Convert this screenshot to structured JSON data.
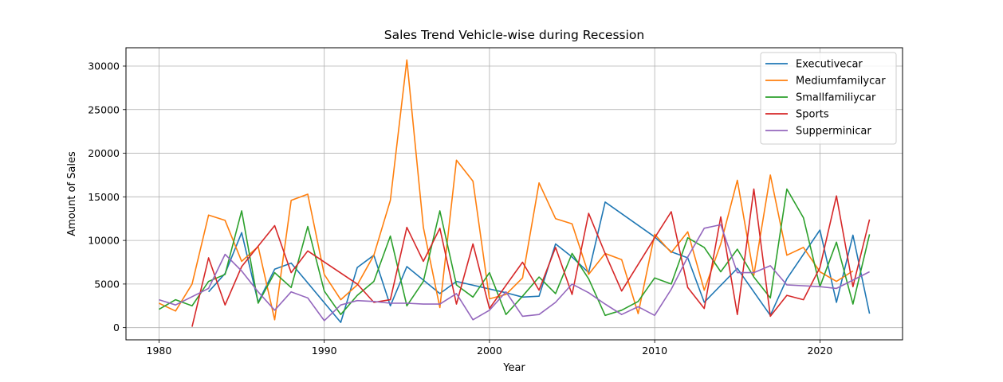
{
  "chart_data": {
    "type": "line",
    "title": "Sales Trend Vehicle-wise during Recession",
    "xlabel": "Year",
    "ylabel": "Amount of Sales",
    "xlim": [
      1978,
      2025
    ],
    "ylim": [
      -1400,
      32100
    ],
    "xticks": [
      1980,
      1990,
      2000,
      2010,
      2020
    ],
    "yticks": [
      0,
      5000,
      10000,
      15000,
      20000,
      25000,
      30000
    ],
    "grid": true,
    "legend_position": "top-right",
    "series": [
      {
        "name": "Executivecar",
        "color": "#1f77b4",
        "points": [
          [
            1983,
            4100
          ],
          [
            1984,
            6200
          ],
          [
            1985,
            10900
          ],
          [
            1986,
            2900
          ],
          [
            1987,
            6700
          ],
          [
            1988,
            7400
          ],
          [
            1991,
            600
          ],
          [
            1992,
            6900
          ],
          [
            1993,
            8300
          ],
          [
            1994,
            2500
          ],
          [
            1995,
            7000
          ],
          [
            1997,
            3900
          ],
          [
            1998,
            5300
          ],
          [
            2001,
            4000
          ],
          [
            2002,
            3500
          ],
          [
            2003,
            3600
          ],
          [
            2004,
            9600
          ],
          [
            2005,
            8100
          ],
          [
            2006,
            6300
          ],
          [
            2007,
            14400
          ],
          [
            2010,
            10400
          ],
          [
            2011,
            8700
          ],
          [
            2012,
            8000
          ],
          [
            2013,
            2900
          ],
          [
            2015,
            6800
          ],
          [
            2017,
            1400
          ],
          [
            2018,
            5600
          ],
          [
            2020,
            11200
          ],
          [
            2021,
            2900
          ],
          [
            2022,
            10600
          ],
          [
            2023,
            1600
          ]
        ]
      },
      {
        "name": "Mediumfamilycar",
        "color": "#ff7f0e",
        "points": [
          [
            1980,
            2800
          ],
          [
            1981,
            1900
          ],
          [
            1982,
            5000
          ],
          [
            1983,
            12900
          ],
          [
            1984,
            12300
          ],
          [
            1985,
            7600
          ],
          [
            1986,
            9300
          ],
          [
            1987,
            900
          ],
          [
            1988,
            14600
          ],
          [
            1989,
            15300
          ],
          [
            1990,
            6100
          ],
          [
            1991,
            3200
          ],
          [
            1992,
            4900
          ],
          [
            1993,
            8300
          ],
          [
            1994,
            14600
          ],
          [
            1995,
            30700
          ],
          [
            1996,
            11500
          ],
          [
            1997,
            2300
          ],
          [
            1998,
            19200
          ],
          [
            1999,
            16800
          ],
          [
            2000,
            3300
          ],
          [
            2001,
            3800
          ],
          [
            2002,
            5700
          ],
          [
            2003,
            16600
          ],
          [
            2004,
            12500
          ],
          [
            2005,
            11900
          ],
          [
            2006,
            6100
          ],
          [
            2007,
            8500
          ],
          [
            2008,
            7800
          ],
          [
            2009,
            1600
          ],
          [
            2010,
            10700
          ],
          [
            2011,
            8600
          ],
          [
            2012,
            11000
          ],
          [
            2013,
            4300
          ],
          [
            2014,
            9600
          ],
          [
            2015,
            16900
          ],
          [
            2016,
            6000
          ],
          [
            2017,
            17500
          ],
          [
            2018,
            8300
          ],
          [
            2019,
            9200
          ],
          [
            2020,
            6400
          ],
          [
            2021,
            5300
          ],
          [
            2022,
            6500
          ]
        ]
      },
      {
        "name": "Smallfamiliycar",
        "color": "#2ca02c",
        "points": [
          [
            1980,
            2100
          ],
          [
            1981,
            3200
          ],
          [
            1982,
            2500
          ],
          [
            1983,
            5300
          ],
          [
            1984,
            6100
          ],
          [
            1985,
            13400
          ],
          [
            1986,
            2800
          ],
          [
            1987,
            6300
          ],
          [
            1988,
            4600
          ],
          [
            1989,
            11600
          ],
          [
            1990,
            4200
          ],
          [
            1991,
            1500
          ],
          [
            1992,
            3700
          ],
          [
            1993,
            5300
          ],
          [
            1994,
            10500
          ],
          [
            1995,
            2500
          ],
          [
            1996,
            5300
          ],
          [
            1997,
            13400
          ],
          [
            1998,
            4900
          ],
          [
            1999,
            3500
          ],
          [
            2000,
            6300
          ],
          [
            2001,
            1500
          ],
          [
            2002,
            3600
          ],
          [
            2003,
            5800
          ],
          [
            2004,
            3900
          ],
          [
            2005,
            8500
          ],
          [
            2006,
            5600
          ],
          [
            2007,
            1400
          ],
          [
            2008,
            2000
          ],
          [
            2009,
            3000
          ],
          [
            2010,
            5700
          ],
          [
            2011,
            5000
          ],
          [
            2012,
            10300
          ],
          [
            2013,
            9200
          ],
          [
            2014,
            6400
          ],
          [
            2015,
            9000
          ],
          [
            2016,
            5800
          ],
          [
            2017,
            3400
          ],
          [
            2018,
            15900
          ],
          [
            2019,
            12600
          ],
          [
            2020,
            4700
          ],
          [
            2021,
            9800
          ],
          [
            2022,
            2700
          ],
          [
            2023,
            10700
          ]
        ]
      },
      {
        "name": "Sports",
        "color": "#d62728",
        "points": [
          [
            1982,
            100
          ],
          [
            1983,
            8000
          ],
          [
            1984,
            2600
          ],
          [
            1985,
            7000
          ],
          [
            1987,
            11700
          ],
          [
            1988,
            6300
          ],
          [
            1989,
            8800
          ],
          [
            1992,
            5000
          ],
          [
            1993,
            2900
          ],
          [
            1994,
            3200
          ],
          [
            1995,
            11500
          ],
          [
            1996,
            7600
          ],
          [
            1997,
            11400
          ],
          [
            1998,
            2700
          ],
          [
            1999,
            9600
          ],
          [
            2000,
            2200
          ],
          [
            2002,
            7500
          ],
          [
            2003,
            4300
          ],
          [
            2004,
            9200
          ],
          [
            2005,
            3800
          ],
          [
            2006,
            13100
          ],
          [
            2007,
            8500
          ],
          [
            2008,
            4200
          ],
          [
            2010,
            10300
          ],
          [
            2011,
            13300
          ],
          [
            2012,
            4600
          ],
          [
            2013,
            2200
          ],
          [
            2014,
            12700
          ],
          [
            2015,
            1500
          ],
          [
            2016,
            15900
          ],
          [
            2017,
            1300
          ],
          [
            2018,
            3700
          ],
          [
            2019,
            3200
          ],
          [
            2020,
            6900
          ],
          [
            2021,
            15100
          ],
          [
            2022,
            4700
          ],
          [
            2023,
            12400
          ]
        ]
      },
      {
        "name": "Supperminicar",
        "color": "#9467bd",
        "points": [
          [
            1980,
            3200
          ],
          [
            1981,
            2600
          ],
          [
            1983,
            4500
          ],
          [
            1984,
            8400
          ],
          [
            1985,
            6500
          ],
          [
            1986,
            4100
          ],
          [
            1987,
            2000
          ],
          [
            1988,
            4100
          ],
          [
            1989,
            3400
          ],
          [
            1990,
            800
          ],
          [
            1991,
            2600
          ],
          [
            1992,
            3100
          ],
          [
            1993,
            3000
          ],
          [
            1994,
            2800
          ],
          [
            1995,
            2800
          ],
          [
            1996,
            2700
          ],
          [
            1997,
            2700
          ],
          [
            1998,
            3900
          ],
          [
            1999,
            900
          ],
          [
            2000,
            2000
          ],
          [
            2001,
            4100
          ],
          [
            2002,
            1300
          ],
          [
            2003,
            1500
          ],
          [
            2004,
            2900
          ],
          [
            2005,
            5000
          ],
          [
            2006,
            4000
          ],
          [
            2007,
            2700
          ],
          [
            2008,
            1500
          ],
          [
            2009,
            2400
          ],
          [
            2010,
            1400
          ],
          [
            2011,
            4400
          ],
          [
            2012,
            8100
          ],
          [
            2013,
            11400
          ],
          [
            2014,
            11800
          ],
          [
            2015,
            6300
          ],
          [
            2016,
            6300
          ],
          [
            2017,
            7100
          ],
          [
            2018,
            4900
          ],
          [
            2020,
            4700
          ],
          [
            2021,
            4500
          ],
          [
            2023,
            6400
          ]
        ]
      }
    ]
  }
}
